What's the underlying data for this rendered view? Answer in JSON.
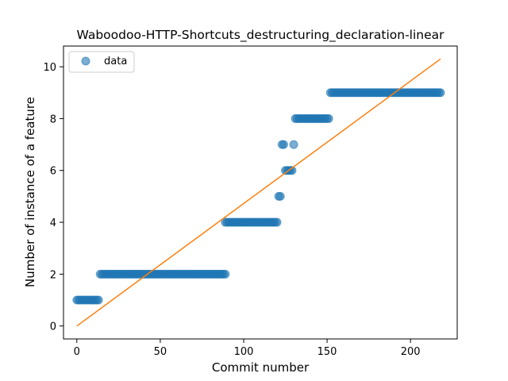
{
  "chart_data": {
    "type": "scatter",
    "title": "Waboodoo-HTTP-Shortcuts_destructuring_declaration-linear",
    "xlabel": "Commit number",
    "ylabel": "Number of instance of a feature",
    "xlim": [
      -8,
      228
    ],
    "ylim": [
      -0.5,
      10.8
    ],
    "xticks": [
      0,
      50,
      100,
      150,
      200
    ],
    "yticks": [
      0,
      2,
      4,
      6,
      8,
      10
    ],
    "grid": false,
    "legend_position": "upper left",
    "series": [
      {
        "name": "data",
        "kind": "points",
        "color": "#1f77b4",
        "segments": [
          {
            "x_from": 0,
            "x_to": 13,
            "y": 1
          },
          {
            "x_from": 14,
            "x_to": 89,
            "y": 2
          },
          {
            "x_from": 89,
            "x_to": 120,
            "y": 4
          },
          {
            "x_from": 121,
            "x_to": 122,
            "y": 5
          },
          {
            "x_from": 123,
            "x_to": 124,
            "y": 7
          },
          {
            "x_from": 125,
            "x_to": 129,
            "y": 6
          },
          {
            "x_from": 130,
            "x_to": 130,
            "y": 7
          },
          {
            "x_from": 131,
            "x_to": 151,
            "y": 8
          },
          {
            "x_from": 152,
            "x_to": 218,
            "y": 9
          }
        ]
      },
      {
        "kind": "line",
        "color": "#ff7f0e",
        "x": [
          0,
          218
        ],
        "y": [
          0,
          10.3
        ]
      }
    ]
  }
}
